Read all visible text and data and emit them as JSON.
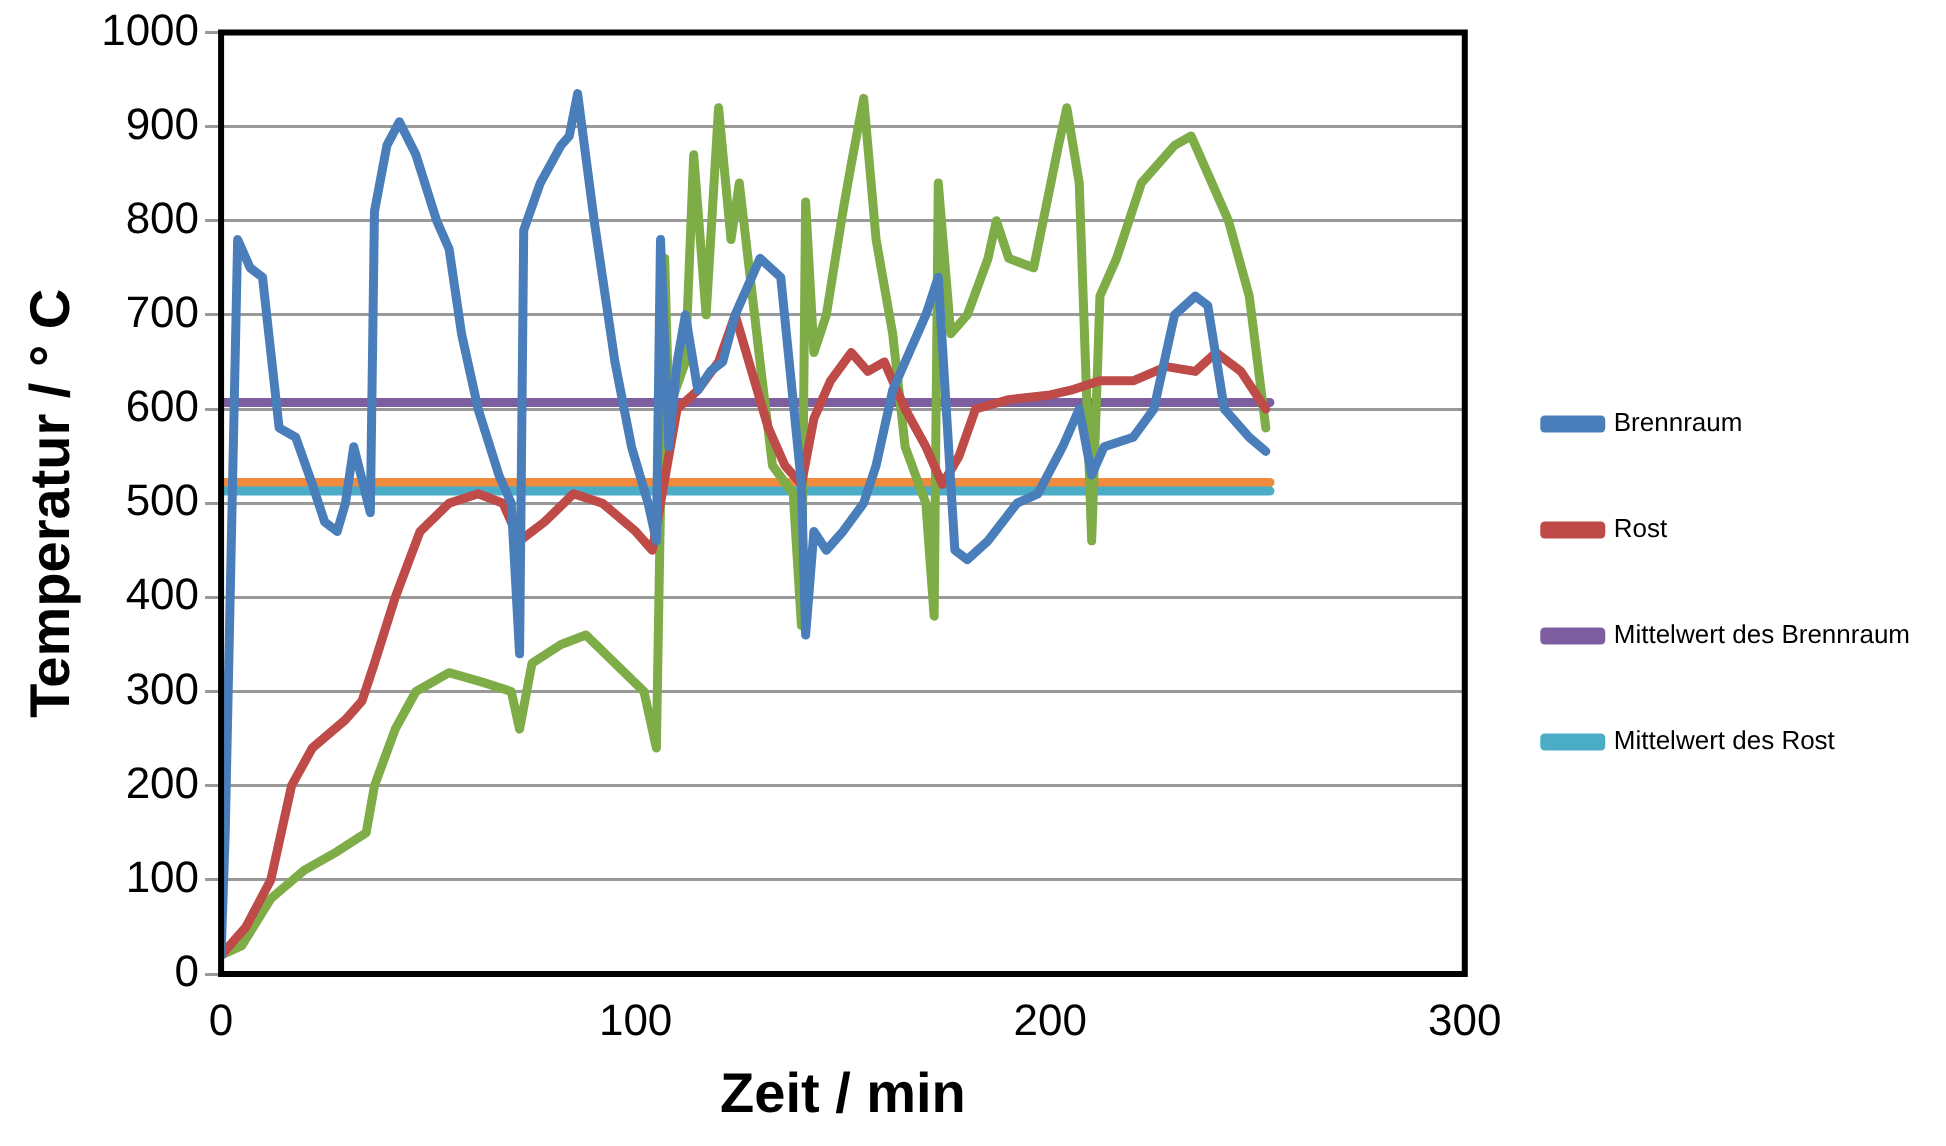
{
  "chart_data": {
    "type": "line",
    "xlabel": "Zeit / min",
    "ylabel": "Temperatur / ° C",
    "xlim": [
      0,
      300
    ],
    "xticks": [
      0,
      100,
      200,
      300
    ],
    "ylim": [
      0,
      1000
    ],
    "yticks": [
      0,
      100,
      200,
      300,
      400,
      500,
      600,
      700,
      800,
      900,
      {
        "value": 1000,
        "label": "1000"
      }
    ],
    "grid": "y",
    "legend": "right",
    "marker": "none",
    "line_style": "solid",
    "series": [
      {
        "name": "Brennraum",
        "color": "#4a7ebb",
        "x": [
          0,
          1,
          4,
          7,
          10,
          14,
          18,
          22,
          25,
          28,
          30,
          32,
          36,
          37,
          40,
          43,
          47,
          52,
          55,
          58,
          62,
          67,
          70,
          72,
          73,
          77,
          82,
          84,
          86,
          90,
          95,
          99,
          103,
          105,
          106,
          108,
          110,
          112,
          115,
          118,
          121,
          124,
          130,
          135,
          140,
          141,
          143,
          146,
          150,
          155,
          158,
          162,
          166,
          170,
          173,
          177,
          180,
          185,
          192,
          197,
          203,
          207,
          210,
          213,
          220,
          225,
          230,
          235,
          238,
          242,
          248,
          252
        ],
        "values": [
          20,
          150,
          780,
          750,
          740,
          580,
          570,
          520,
          480,
          470,
          500,
          560,
          490,
          810,
          880,
          905,
          870,
          800,
          770,
          680,
          600,
          530,
          500,
          340,
          790,
          840,
          880,
          890,
          935,
          800,
          650,
          560,
          500,
          460,
          780,
          560,
          650,
          700,
          620,
          640,
          650,
          700,
          760,
          740,
          520,
          360,
          470,
          450,
          470,
          500,
          540,
          620,
          660,
          700,
          740,
          450,
          440,
          460,
          500,
          510,
          560,
          600,
          530,
          560,
          570,
          600,
          700,
          720,
          710,
          600,
          570,
          555
        ]
      },
      {
        "name": "Rost",
        "color": "#be4b48",
        "x": [
          0,
          6,
          12,
          17,
          22,
          30,
          34,
          37,
          42,
          48,
          55,
          62,
          68,
          72,
          78,
          85,
          92,
          100,
          104,
          110,
          115,
          120,
          124,
          128,
          132,
          136,
          140,
          143,
          147,
          152,
          156,
          160,
          165,
          170,
          174,
          178,
          182,
          190,
          200,
          205,
          212,
          220,
          228,
          235,
          240,
          246,
          252
        ],
        "values": [
          20,
          50,
          100,
          200,
          240,
          270,
          290,
          330,
          400,
          470,
          500,
          510,
          500,
          460,
          480,
          510,
          500,
          470,
          450,
          600,
          620,
          650,
          700,
          640,
          580,
          540,
          520,
          590,
          630,
          660,
          640,
          650,
          600,
          560,
          520,
          550,
          600,
          610,
          615,
          620,
          630,
          630,
          645,
          640,
          660,
          640,
          600
        ]
      },
      {
        "name": null,
        "color": "#7eac46",
        "x": [
          0,
          5,
          12,
          20,
          28,
          35,
          37,
          42,
          47,
          55,
          63,
          70,
          72,
          75,
          82,
          88,
          95,
          102,
          105,
          107,
          108,
          112,
          114,
          117,
          120,
          123,
          125,
          130,
          133,
          138,
          140,
          141,
          143,
          146,
          150,
          152,
          155,
          158,
          162,
          165,
          170,
          172,
          173,
          176,
          180,
          185,
          187,
          190,
          196,
          202,
          204,
          207,
          210,
          212,
          216,
          222,
          230,
          234,
          238,
          243,
          248,
          252
        ],
        "values": [
          20,
          30,
          80,
          110,
          130,
          150,
          200,
          260,
          300,
          320,
          310,
          300,
          260,
          330,
          350,
          360,
          330,
          300,
          240,
          760,
          600,
          650,
          870,
          700,
          920,
          780,
          840,
          650,
          540,
          510,
          370,
          820,
          660,
          700,
          810,
          860,
          930,
          780,
          680,
          560,
          500,
          380,
          840,
          680,
          700,
          760,
          800,
          760,
          750,
          880,
          920,
          840,
          460,
          720,
          760,
          840,
          880,
          890,
          850,
          800,
          720,
          580
        ]
      },
      {
        "name": "Mittelwert des Brennraum",
        "color": "#7d5fa0",
        "x": [
          0,
          253
        ],
        "values": [
          607,
          607
        ]
      },
      {
        "name": "Mittelwert des Rost",
        "color": "#4bacc6",
        "x": [
          0,
          253
        ],
        "values": [
          513,
          513
        ]
      },
      {
        "name": null,
        "color": "#f08a3c",
        "x": [
          0,
          253
        ],
        "values": [
          522,
          522
        ]
      }
    ]
  }
}
